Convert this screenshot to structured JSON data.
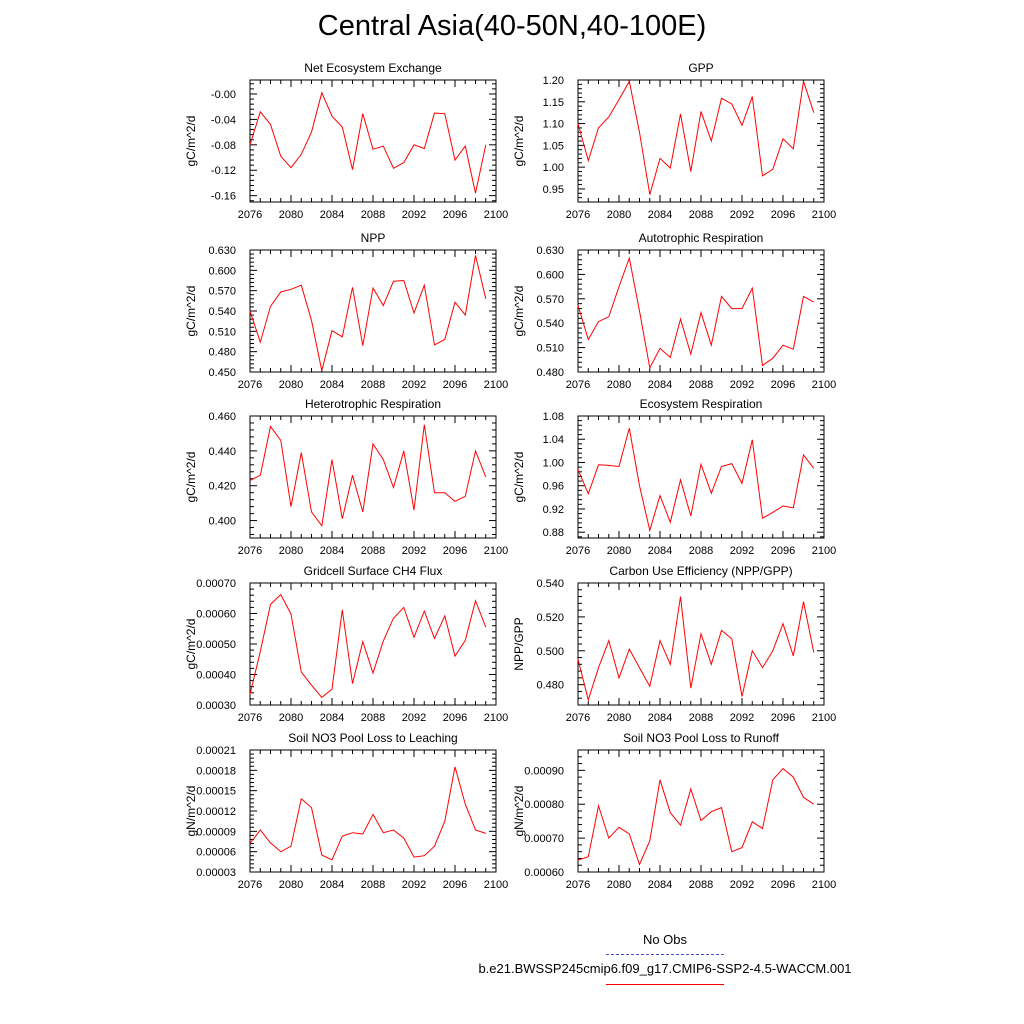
{
  "title": "Central Asia(40-50N,40-100E)",
  "colors": {
    "series": "#ff0000",
    "obs": "#4b4bd0",
    "axis": "#000000"
  },
  "legend": {
    "obs_label": "No Obs",
    "model_label": "b.e21.BWSSP245cmip6.f09_g17.CMIP6-SSP2-4.5-WACCM.001"
  },
  "chart_data": [
    {
      "type": "line",
      "title": "Net Ecosystem Exchange",
      "ylabel": "gC/m^2/d",
      "xlim": [
        2076,
        2100
      ],
      "xticks": [
        2076,
        2080,
        2084,
        2088,
        2092,
        2096,
        2100
      ],
      "xtick_labels": [
        "2076",
        "2080",
        "2084",
        "2088",
        "2092",
        "2096",
        "2100"
      ],
      "ylim": [
        -0.17,
        0.022
      ],
      "yticks": [
        -0.16,
        -0.12,
        -0.08,
        -0.04,
        0.0
      ],
      "ytick_labels": [
        "-0.16",
        "-0.12",
        "-0.08",
        "-0.04",
        "-0.00"
      ],
      "x": [
        2076,
        2077,
        2078,
        2079,
        2080,
        2081,
        2082,
        2083,
        2084,
        2085,
        2086,
        2087,
        2088,
        2089,
        2090,
        2091,
        2092,
        2093,
        2094,
        2095,
        2096,
        2097,
        2098,
        2099
      ],
      "series": [
        {
          "name": "b.e21.BWSSP245cmip6.f09_g17.CMIP6-SSP2-4.5-WACCM.001",
          "values": [
            -0.08,
            -0.028,
            -0.048,
            -0.098,
            -0.116,
            -0.095,
            -0.06,
            0.002,
            -0.035,
            -0.052,
            -0.119,
            -0.031,
            -0.087,
            -0.082,
            -0.117,
            -0.108,
            -0.08,
            -0.086,
            -0.03,
            -0.031,
            -0.104,
            -0.082,
            -0.156,
            -0.08
          ]
        }
      ]
    },
    {
      "type": "line",
      "title": "GPP",
      "ylabel": "gC/m^2/d",
      "xlim": [
        2076,
        2100
      ],
      "xticks": [
        2076,
        2080,
        2084,
        2088,
        2092,
        2096,
        2100
      ],
      "xtick_labels": [
        "2076",
        "2080",
        "2084",
        "2088",
        "2092",
        "2096",
        "2100"
      ],
      "ylim": [
        0.92,
        1.2
      ],
      "yticks": [
        0.95,
        1.0,
        1.05,
        1.1,
        1.15,
        1.2
      ],
      "ytick_labels": [
        "0.95",
        "1.00",
        "1.05",
        "1.10",
        "1.15",
        "1.20"
      ],
      "x": [
        2076,
        2077,
        2078,
        2079,
        2080,
        2081,
        2082,
        2083,
        2084,
        2085,
        2086,
        2087,
        2088,
        2089,
        2090,
        2091,
        2092,
        2093,
        2094,
        2095,
        2096,
        2097,
        2098,
        2099
      ],
      "series": [
        {
          "name": "b.e21.BWSSP245cmip6.f09_g17.CMIP6-SSP2-4.5-WACCM.001",
          "values": [
            1.1,
            1.015,
            1.09,
            1.115,
            1.155,
            1.197,
            1.08,
            0.937,
            1.02,
            0.998,
            1.122,
            0.99,
            1.128,
            1.06,
            1.158,
            1.145,
            1.096,
            1.162,
            0.98,
            0.995,
            1.065,
            1.042,
            1.197,
            1.125
          ]
        }
      ]
    },
    {
      "type": "line",
      "title": "NPP",
      "ylabel": "gC/m^2/d",
      "xlim": [
        2076,
        2100
      ],
      "xticks": [
        2076,
        2080,
        2084,
        2088,
        2092,
        2096,
        2100
      ],
      "xtick_labels": [
        "2076",
        "2080",
        "2084",
        "2088",
        "2092",
        "2096",
        "2100"
      ],
      "ylim": [
        0.45,
        0.63
      ],
      "yticks": [
        0.45,
        0.48,
        0.51,
        0.54,
        0.57,
        0.6,
        0.63
      ],
      "ytick_labels": [
        "0.450",
        "0.480",
        "0.510",
        "0.540",
        "0.570",
        "0.600",
        "0.630"
      ],
      "x": [
        2076,
        2077,
        2078,
        2079,
        2080,
        2081,
        2082,
        2083,
        2084,
        2085,
        2086,
        2087,
        2088,
        2089,
        2090,
        2091,
        2092,
        2093,
        2094,
        2095,
        2096,
        2097,
        2098,
        2099
      ],
      "series": [
        {
          "name": "b.e21.BWSSP245cmip6.f09_g17.CMIP6-SSP2-4.5-WACCM.001",
          "values": [
            0.54,
            0.494,
            0.547,
            0.568,
            0.572,
            0.578,
            0.526,
            0.452,
            0.511,
            0.502,
            0.575,
            0.489,
            0.574,
            0.548,
            0.584,
            0.585,
            0.537,
            0.578,
            0.49,
            0.498,
            0.553,
            0.534,
            0.622,
            0.558
          ]
        }
      ]
    },
    {
      "type": "line",
      "title": "Autotrophic Respiration",
      "ylabel": "gC/m^2/d",
      "xlim": [
        2076,
        2100
      ],
      "xticks": [
        2076,
        2080,
        2084,
        2088,
        2092,
        2096,
        2100
      ],
      "xtick_labels": [
        "2076",
        "2080",
        "2084",
        "2088",
        "2092",
        "2096",
        "2100"
      ],
      "ylim": [
        0.48,
        0.63
      ],
      "yticks": [
        0.48,
        0.51,
        0.54,
        0.57,
        0.6,
        0.63
      ],
      "ytick_labels": [
        "0.480",
        "0.510",
        "0.540",
        "0.570",
        "0.600",
        "0.630"
      ],
      "x": [
        2076,
        2077,
        2078,
        2079,
        2080,
        2081,
        2082,
        2083,
        2084,
        2085,
        2086,
        2087,
        2088,
        2089,
        2090,
        2091,
        2092,
        2093,
        2094,
        2095,
        2096,
        2097,
        2098,
        2099
      ],
      "series": [
        {
          "name": "b.e21.BWSSP245cmip6.f09_g17.CMIP6-SSP2-4.5-WACCM.001",
          "values": [
            0.562,
            0.52,
            0.542,
            0.548,
            0.585,
            0.62,
            0.555,
            0.485,
            0.509,
            0.498,
            0.545,
            0.502,
            0.553,
            0.513,
            0.573,
            0.558,
            0.558,
            0.583,
            0.488,
            0.497,
            0.513,
            0.508,
            0.573,
            0.566
          ]
        }
      ]
    },
    {
      "type": "line",
      "title": "Heterotrophic Respiration",
      "ylabel": "gC/m^2/d",
      "xlim": [
        2076,
        2100
      ],
      "xticks": [
        2076,
        2080,
        2084,
        2088,
        2092,
        2096,
        2100
      ],
      "xtick_labels": [
        "2076",
        "2080",
        "2084",
        "2088",
        "2092",
        "2096",
        "2100"
      ],
      "ylim": [
        0.39,
        0.46
      ],
      "yticks": [
        0.4,
        0.42,
        0.44,
        0.46
      ],
      "ytick_labels": [
        "0.400",
        "0.420",
        "0.440",
        "0.460"
      ],
      "x": [
        2076,
        2077,
        2078,
        2079,
        2080,
        2081,
        2082,
        2083,
        2084,
        2085,
        2086,
        2087,
        2088,
        2089,
        2090,
        2091,
        2092,
        2093,
        2094,
        2095,
        2096,
        2097,
        2098,
        2099
      ],
      "series": [
        {
          "name": "b.e21.BWSSP245cmip6.f09_g17.CMIP6-SSP2-4.5-WACCM.001",
          "values": [
            0.423,
            0.426,
            0.454,
            0.446,
            0.408,
            0.439,
            0.405,
            0.397,
            0.435,
            0.401,
            0.426,
            0.405,
            0.444,
            0.435,
            0.419,
            0.44,
            0.406,
            0.455,
            0.416,
            0.416,
            0.411,
            0.414,
            0.44,
            0.425
          ]
        }
      ]
    },
    {
      "type": "line",
      "title": "Ecosystem Respiration",
      "ylabel": "gC/m^2/d",
      "xlim": [
        2076,
        2100
      ],
      "xticks": [
        2076,
        2080,
        2084,
        2088,
        2092,
        2096,
        2100
      ],
      "xtick_labels": [
        "2076",
        "2080",
        "2084",
        "2088",
        "2092",
        "2096",
        "2100"
      ],
      "ylim": [
        0.87,
        1.08
      ],
      "yticks": [
        0.88,
        0.92,
        0.96,
        1.0,
        1.04,
        1.08
      ],
      "ytick_labels": [
        "0.88",
        "0.92",
        "0.96",
        "1.00",
        "1.04",
        "1.08"
      ],
      "x": [
        2076,
        2077,
        2078,
        2079,
        2080,
        2081,
        2082,
        2083,
        2084,
        2085,
        2086,
        2087,
        2088,
        2089,
        2090,
        2091,
        2092,
        2093,
        2094,
        2095,
        2096,
        2097,
        2098,
        2099
      ],
      "series": [
        {
          "name": "b.e21.BWSSP245cmip6.f09_g17.CMIP6-SSP2-4.5-WACCM.001",
          "values": [
            0.988,
            0.946,
            0.996,
            0.995,
            0.993,
            1.059,
            0.96,
            0.883,
            0.943,
            0.897,
            0.97,
            0.908,
            0.997,
            0.947,
            0.993,
            0.998,
            0.964,
            1.039,
            0.904,
            0.914,
            0.925,
            0.922,
            1.013,
            0.99
          ]
        }
      ]
    },
    {
      "type": "line",
      "title": "Gridcell Surface CH4 Flux",
      "ylabel": "gC/m^2/d",
      "xlim": [
        2076,
        2100
      ],
      "xticks": [
        2076,
        2080,
        2084,
        2088,
        2092,
        2096,
        2100
      ],
      "xtick_labels": [
        "2076",
        "2080",
        "2084",
        "2088",
        "2092",
        "2096",
        "2100"
      ],
      "ylim": [
        0.0003,
        0.0007
      ],
      "yticks": [
        0.0003,
        0.0004,
        0.0005,
        0.0006,
        0.0007
      ],
      "ytick_labels": [
        "0.00030",
        "0.00040",
        "0.00050",
        "0.00060",
        "0.00070"
      ],
      "x": [
        2076,
        2077,
        2078,
        2079,
        2080,
        2081,
        2082,
        2083,
        2084,
        2085,
        2086,
        2087,
        2088,
        2089,
        2090,
        2091,
        2092,
        2093,
        2094,
        2095,
        2096,
        2097,
        2098,
        2099
      ],
      "series": [
        {
          "name": "b.e21.BWSSP245cmip6.f09_g17.CMIP6-SSP2-4.5-WACCM.001",
          "values": [
            0.000335,
            0.000475,
            0.00063,
            0.000662,
            0.000598,
            0.000408,
            0.000365,
            0.000325,
            0.000352,
            0.000612,
            0.00037,
            0.000508,
            0.000405,
            0.00051,
            0.000585,
            0.00062,
            0.000522,
            0.000608,
            0.000518,
            0.000592,
            0.00046,
            0.000512,
            0.000642,
            0.000555
          ]
        }
      ]
    },
    {
      "type": "line",
      "title": "Carbon Use Efficiency (NPP/GPP)",
      "ylabel": "NPP/GPP",
      "xlim": [
        2076,
        2100
      ],
      "xticks": [
        2076,
        2080,
        2084,
        2088,
        2092,
        2096,
        2100
      ],
      "xtick_labels": [
        "2076",
        "2080",
        "2084",
        "2088",
        "2092",
        "2096",
        "2100"
      ],
      "ylim": [
        0.468,
        0.54
      ],
      "yticks": [
        0.48,
        0.5,
        0.52,
        0.54
      ],
      "ytick_labels": [
        "0.480",
        "0.500",
        "0.520",
        "0.540"
      ],
      "x": [
        2076,
        2077,
        2078,
        2079,
        2080,
        2081,
        2082,
        2083,
        2084,
        2085,
        2086,
        2087,
        2088,
        2089,
        2090,
        2091,
        2092,
        2093,
        2094,
        2095,
        2096,
        2097,
        2098,
        2099
      ],
      "series": [
        {
          "name": "b.e21.BWSSP245cmip6.f09_g17.CMIP6-SSP2-4.5-WACCM.001",
          "values": [
            0.495,
            0.471,
            0.49,
            0.506,
            0.484,
            0.501,
            0.49,
            0.479,
            0.506,
            0.492,
            0.532,
            0.478,
            0.51,
            0.492,
            0.512,
            0.507,
            0.473,
            0.5,
            0.49,
            0.5,
            0.516,
            0.497,
            0.529,
            0.499
          ]
        }
      ]
    },
    {
      "type": "line",
      "title": "Soil NO3 Pool Loss to Leaching",
      "ylabel": "gN/m^2/d",
      "xlim": [
        2076,
        2100
      ],
      "xticks": [
        2076,
        2080,
        2084,
        2088,
        2092,
        2096,
        2100
      ],
      "xtick_labels": [
        "2076",
        "2080",
        "2084",
        "2088",
        "2092",
        "2096",
        "2100"
      ],
      "ylim": [
        3e-05,
        0.00021
      ],
      "yticks": [
        3e-05,
        6e-05,
        9e-05,
        0.00012,
        0.00015,
        0.00018,
        0.00021
      ],
      "ytick_labels": [
        "0.00003",
        "0.00006",
        "0.00009",
        "0.00012",
        "0.00015",
        "0.00018",
        "0.00021"
      ],
      "x": [
        2076,
        2077,
        2078,
        2079,
        2080,
        2081,
        2082,
        2083,
        2084,
        2085,
        2086,
        2087,
        2088,
        2089,
        2090,
        2091,
        2092,
        2093,
        2094,
        2095,
        2096,
        2097,
        2098,
        2099
      ],
      "series": [
        {
          "name": "b.e21.BWSSP245cmip6.f09_g17.CMIP6-SSP2-4.5-WACCM.001",
          "values": [
            7.2e-05,
            9.2e-05,
            7.3e-05,
            6e-05,
            6.8e-05,
            0.000138,
            0.000125,
            5.5e-05,
            4.8e-05,
            8.3e-05,
            8.8e-05,
            8.6e-05,
            0.000115,
            8.8e-05,
            9.2e-05,
            8e-05,
            5.2e-05,
            5.4e-05,
            6.8e-05,
            0.000105,
            0.000185,
            0.00013,
            9.2e-05,
            8.7e-05
          ]
        }
      ]
    },
    {
      "type": "line",
      "title": "Soil NO3 Pool Loss to Runoff",
      "ylabel": "gN/m^2/d",
      "xlim": [
        2076,
        2100
      ],
      "xticks": [
        2076,
        2080,
        2084,
        2088,
        2092,
        2096,
        2100
      ],
      "xtick_labels": [
        "2076",
        "2080",
        "2084",
        "2088",
        "2092",
        "2096",
        "2100"
      ],
      "ylim": [
        0.0006,
        0.00096
      ],
      "yticks": [
        0.0006,
        0.0007,
        0.0008,
        0.0009
      ],
      "ytick_labels": [
        "0.00060",
        "0.00070",
        "0.00080",
        "0.00090"
      ],
      "x": [
        2076,
        2077,
        2078,
        2079,
        2080,
        2081,
        2082,
        2083,
        2084,
        2085,
        2086,
        2087,
        2088,
        2089,
        2090,
        2091,
        2092,
        2093,
        2094,
        2095,
        2096,
        2097,
        2098,
        2099
      ],
      "series": [
        {
          "name": "b.e21.BWSSP245cmip6.f09_g17.CMIP6-SSP2-4.5-WACCM.001",
          "values": [
            0.000635,
            0.000645,
            0.000795,
            0.0007,
            0.000732,
            0.000712,
            0.000622,
            0.000692,
            0.000872,
            0.000775,
            0.000738,
            0.000845,
            0.000752,
            0.000778,
            0.00079,
            0.00066,
            0.000672,
            0.000748,
            0.000728,
            0.000872,
            0.000905,
            0.00088,
            0.00082,
            0.0008
          ]
        }
      ]
    }
  ]
}
